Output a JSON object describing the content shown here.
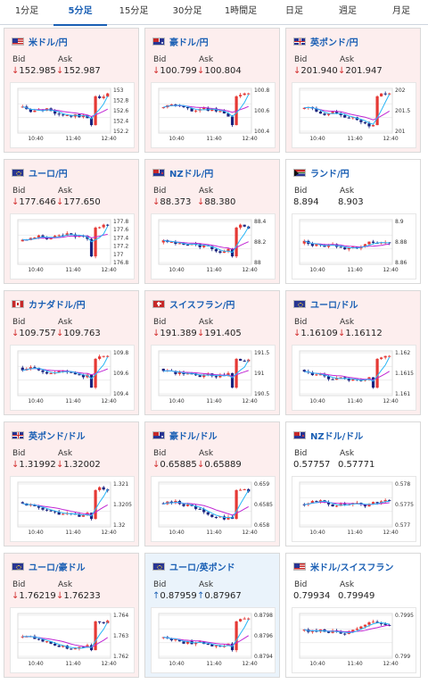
{
  "tabs": [
    {
      "label": "1分足",
      "active": false
    },
    {
      "label": "5分足",
      "active": true
    },
    {
      "label": "15分足",
      "active": false
    },
    {
      "label": "30分足",
      "active": false
    },
    {
      "label": "1時間足",
      "active": false
    },
    {
      "label": "日足",
      "active": false
    },
    {
      "label": "週足",
      "active": false
    },
    {
      "label": "月足",
      "active": false
    }
  ],
  "labels": {
    "bid": "Bid",
    "ask": "Ask"
  },
  "colors": {
    "down": "#d32f2f",
    "up": "#1a5fb4",
    "candle_up": "#e53935",
    "candle_down": "#1a237e",
    "ma_short": "#29b6f6",
    "ma_long": "#c026d3"
  },
  "pairs": [
    {
      "name": "米ドル/円",
      "flag": "us-flag",
      "bg": "down",
      "bid": "152.985",
      "ask": "152.987",
      "bid_arrow": "↓",
      "ask_arrow": "↓",
      "chart_data": {
        "type": "candlestick",
        "x_ticks": [
          "10:40",
          "11:40",
          "12:40"
        ],
        "y_ticks": [
          "153",
          "152.8",
          "152.6",
          "152.4",
          "152.2"
        ]
      }
    },
    {
      "name": "豪ドル/円",
      "flag": "au-flag",
      "bg": "down",
      "bid": "100.799",
      "ask": "100.804",
      "bid_arrow": "↓",
      "ask_arrow": "↓",
      "chart_data": {
        "type": "candlestick",
        "x_ticks": [
          "10:40",
          "11:40",
          "12:40"
        ],
        "y_ticks": [
          "100.8",
          "100.6",
          "100.4"
        ]
      }
    },
    {
      "name": "英ポンド/円",
      "flag": "gb-flag",
      "bg": "down",
      "bid": "201.940",
      "ask": "201.947",
      "bid_arrow": "↓",
      "ask_arrow": "↓",
      "chart_data": {
        "type": "candlestick",
        "x_ticks": [
          "10:40",
          "11:40",
          "12:40"
        ],
        "y_ticks": [
          "202",
          "201.5",
          "201"
        ]
      }
    },
    {
      "name": "ユーロ/円",
      "flag": "eu-flag",
      "bg": "down",
      "bid": "177.646",
      "ask": "177.650",
      "bid_arrow": "↓",
      "ask_arrow": "↓",
      "chart_data": {
        "type": "candlestick",
        "x_ticks": [
          "10:40",
          "11:40",
          "12:40"
        ],
        "y_ticks": [
          "177.8",
          "177.6",
          "177.4",
          "177.2",
          "177",
          "176.8"
        ]
      }
    },
    {
      "name": "NZドル/円",
      "flag": "nz-flag",
      "bg": "down",
      "bid": "88.373",
      "ask": "88.380",
      "bid_arrow": "↓",
      "ask_arrow": "↓",
      "chart_data": {
        "type": "candlestick",
        "x_ticks": [
          "10:40",
          "11:40",
          "12:40"
        ],
        "y_ticks": [
          "88.4",
          "88.2",
          "88"
        ]
      }
    },
    {
      "name": "ランド/円",
      "flag": "za-flag",
      "bg": "flat",
      "bid": "8.894",
      "ask": "8.903",
      "bid_arrow": "",
      "ask_arrow": "",
      "chart_data": {
        "type": "candlestick",
        "x_ticks": [
          "10:40",
          "11:40",
          "12:40"
        ],
        "y_ticks": [
          "8.9",
          "8.88",
          "8.86"
        ]
      }
    },
    {
      "name": "カナダドル/円",
      "flag": "ca-flag",
      "bg": "down",
      "bid": "109.757",
      "ask": "109.763",
      "bid_arrow": "↓",
      "ask_arrow": "↓",
      "chart_data": {
        "type": "candlestick",
        "x_ticks": [
          "10:40",
          "11:40",
          "12:40"
        ],
        "y_ticks": [
          "109.8",
          "109.6",
          "109.4"
        ]
      }
    },
    {
      "name": "スイスフラン/円",
      "flag": "ch-flag",
      "bg": "down",
      "bid": "191.389",
      "ask": "191.405",
      "bid_arrow": "↓",
      "ask_arrow": "↓",
      "chart_data": {
        "type": "candlestick",
        "x_ticks": [
          "10:40",
          "11:40",
          "12:40"
        ],
        "y_ticks": [
          "191.5",
          "191",
          "190.5"
        ]
      }
    },
    {
      "name": "ユーロ/ドル",
      "flag": "eu-flag",
      "bg": "down",
      "bid": "1.16109",
      "ask": "1.16112",
      "bid_arrow": "↓",
      "ask_arrow": "↓",
      "chart_data": {
        "type": "candlestick",
        "x_ticks": [
          "10:40",
          "11:40",
          "12:40"
        ],
        "y_ticks": [
          "1.162",
          "1.1615",
          "1.161"
        ]
      }
    },
    {
      "name": "英ポンド/ドル",
      "flag": "gb-flag",
      "bg": "down",
      "bid": "1.31992",
      "ask": "1.32002",
      "bid_arrow": "↓",
      "ask_arrow": "↓",
      "chart_data": {
        "type": "candlestick",
        "x_ticks": [
          "10:40",
          "11:40",
          "12:40"
        ],
        "y_ticks": [
          "1.321",
          "1.3205",
          "1.32"
        ]
      }
    },
    {
      "name": "豪ドル/ドル",
      "flag": "au-flag",
      "bg": "down",
      "bid": "0.65885",
      "ask": "0.65889",
      "bid_arrow": "↓",
      "ask_arrow": "↓",
      "chart_data": {
        "type": "candlestick",
        "x_ticks": [
          "10:40",
          "11:40",
          "12:40"
        ],
        "y_ticks": [
          "0.659",
          "0.6585",
          "0.658"
        ]
      }
    },
    {
      "name": "NZドル/ドル",
      "flag": "nz-flag",
      "bg": "flat",
      "bid": "0.57757",
      "ask": "0.57771",
      "bid_arrow": "",
      "ask_arrow": "",
      "chart_data": {
        "type": "candlestick",
        "x_ticks": [
          "10:40",
          "11:40",
          "12:40"
        ],
        "y_ticks": [
          "0.578",
          "0.5775",
          "0.577"
        ]
      }
    },
    {
      "name": "ユーロ/豪ドル",
      "flag": "eu-flag",
      "bg": "down",
      "bid": "1.76219",
      "ask": "1.76233",
      "bid_arrow": "↓",
      "ask_arrow": "↓",
      "chart_data": {
        "type": "candlestick",
        "x_ticks": [
          "10:40",
          "11:40",
          "12:40"
        ],
        "y_ticks": [
          "1.764",
          "1.763",
          "1.762"
        ]
      }
    },
    {
      "name": "ユーロ/英ポンド",
      "flag": "eu-flag",
      "bg": "up",
      "bid": "0.87959",
      "ask": "0.87967",
      "bid_arrow": "↑",
      "ask_arrow": "↑",
      "chart_data": {
        "type": "candlestick",
        "x_ticks": [
          "10:40",
          "11:40",
          "12:40"
        ],
        "y_ticks": [
          "0.8798",
          "0.8796",
          "0.8794"
        ]
      }
    },
    {
      "name": "米ドル/スイスフラン",
      "flag": "us-flag",
      "bg": "flat",
      "bid": "0.79934",
      "ask": "0.79949",
      "bid_arrow": "",
      "ask_arrow": "",
      "chart_data": {
        "type": "candlestick",
        "x_ticks": [
          "10:40",
          "11:40",
          "12:40"
        ],
        "y_ticks": [
          "0.7995",
          "0.799"
        ]
      }
    }
  ]
}
